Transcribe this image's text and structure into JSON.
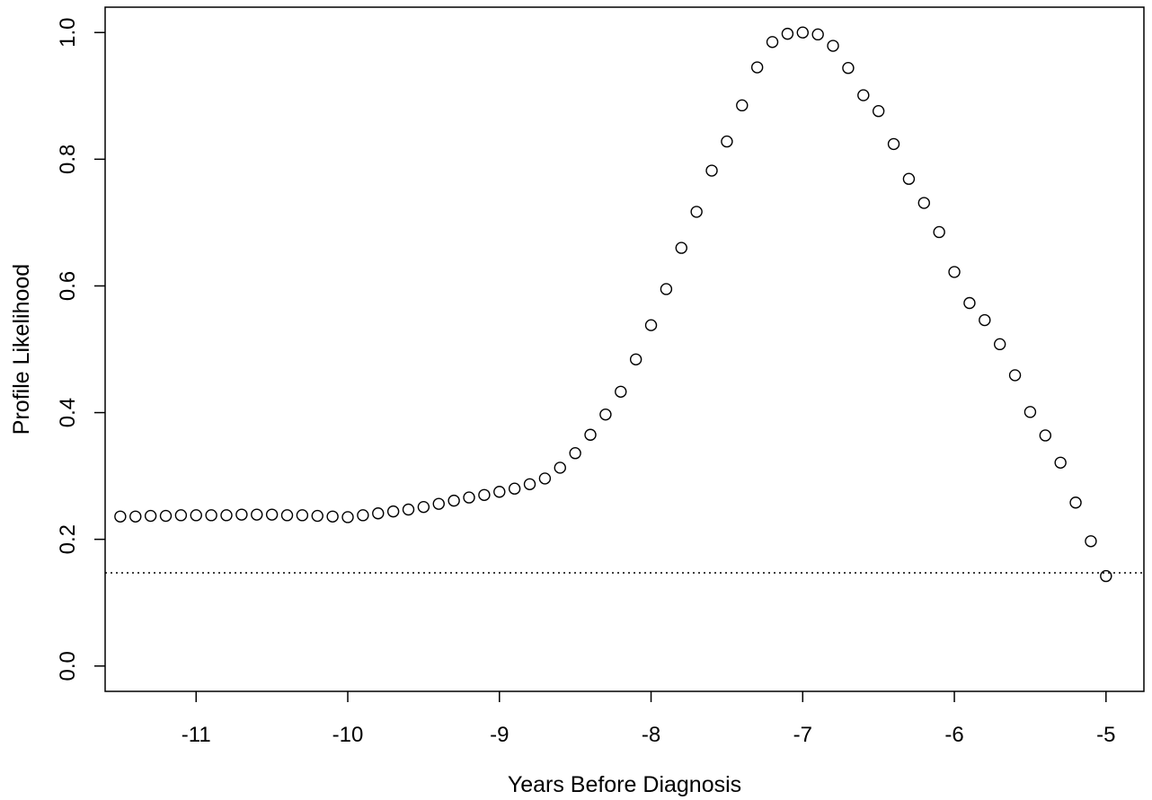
{
  "chart_data": {
    "type": "scatter",
    "title": "",
    "xlabel": "Years Before Diagnosis",
    "ylabel": "Profile Likelihood",
    "xlim": [
      -11.6,
      -4.75
    ],
    "ylim": [
      -0.04,
      1.04
    ],
    "x_ticks": [
      -11,
      -10,
      -9,
      -8,
      -7,
      -6,
      -5
    ],
    "x_tick_labels": [
      "-11",
      "-10",
      "-9",
      "-8",
      "-7",
      "-6",
      "-5"
    ],
    "y_ticks": [
      0.0,
      0.2,
      0.4,
      0.6,
      0.8,
      1.0
    ],
    "y_tick_labels": [
      "0.0",
      "0.2",
      "0.4",
      "0.6",
      "0.8",
      "1.0"
    ],
    "grid": false,
    "marker": "open-circle",
    "reference_line": {
      "y": 0.147,
      "style": "dotted"
    },
    "x": [
      -11.5,
      -11.4,
      -11.3,
      -11.2,
      -11.1,
      -11.0,
      -10.9,
      -10.8,
      -10.7,
      -10.6,
      -10.5,
      -10.4,
      -10.3,
      -10.2,
      -10.1,
      -10.0,
      -9.9,
      -9.8,
      -9.7,
      -9.6,
      -9.5,
      -9.4,
      -9.3,
      -9.2,
      -9.1,
      -9.0,
      -8.9,
      -8.8,
      -8.7,
      -8.6,
      -8.5,
      -8.4,
      -8.3,
      -8.2,
      -8.1,
      -8.0,
      -7.9,
      -7.8,
      -7.7,
      -7.6,
      -7.5,
      -7.4,
      -7.3,
      -7.2,
      -7.1,
      -7.0,
      -6.9,
      -6.8,
      -6.7,
      -6.6,
      -6.5,
      -6.4,
      -6.3,
      -6.2,
      -6.1,
      -6.0,
      -5.9,
      -5.8,
      -5.7,
      -5.6,
      -5.5,
      -5.4,
      -5.3,
      -5.2,
      -5.1,
      -5.0
    ],
    "y": [
      0.236,
      0.236,
      0.237,
      0.237,
      0.238,
      0.238,
      0.238,
      0.238,
      0.239,
      0.239,
      0.239,
      0.238,
      0.238,
      0.237,
      0.236,
      0.235,
      0.238,
      0.241,
      0.244,
      0.247,
      0.251,
      0.256,
      0.261,
      0.266,
      0.27,
      0.275,
      0.28,
      0.287,
      0.296,
      0.313,
      0.336,
      0.365,
      0.397,
      0.433,
      0.484,
      0.538,
      0.595,
      0.66,
      0.717,
      0.782,
      0.828,
      0.885,
      0.945,
      0.985,
      0.998,
      1.0,
      0.997,
      0.979,
      0.944,
      0.901,
      0.876,
      0.824,
      0.769,
      0.731,
      0.685,
      0.622,
      0.573,
      0.546,
      0.508,
      0.459,
      0.401,
      0.364,
      0.321,
      0.258,
      0.197,
      0.142
    ]
  }
}
